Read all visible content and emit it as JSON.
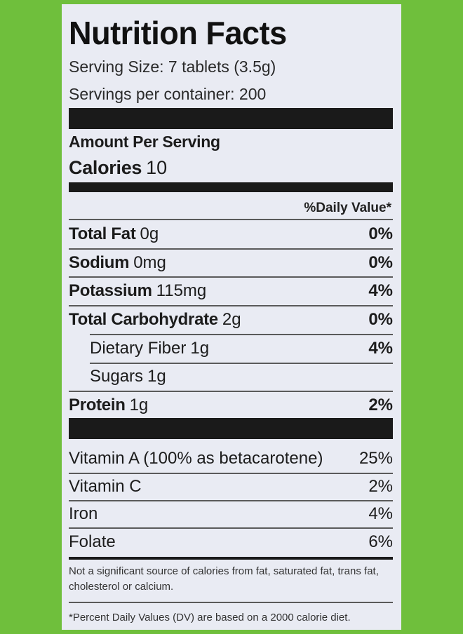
{
  "label": {
    "title": "Nutrition Facts",
    "serving_size": "Serving Size: 7 tablets (3.5g)",
    "servings_per_container": "Servings per container: 200",
    "amount_per_serving": "Amount Per Serving",
    "calories_label": "Calories",
    "calories_value": "10",
    "daily_value_header": "%Daily Value*"
  },
  "nutrients": [
    {
      "name": "Total Fat",
      "amount": "0g",
      "dv": "0%"
    },
    {
      "name": "Sodium",
      "amount": "0mg",
      "dv": "0%"
    },
    {
      "name": "Potassium",
      "amount": "115mg",
      "dv": "4%"
    },
    {
      "name": "Total Carbohydrate",
      "amount": "2g",
      "dv": "0%"
    },
    {
      "name": "Dietary Fiber",
      "amount": "1g",
      "dv": "4%"
    },
    {
      "name": "Sugars",
      "amount": "1g",
      "dv": ""
    },
    {
      "name": "Protein",
      "amount": "1g",
      "dv": "2%"
    }
  ],
  "vitamins": [
    {
      "name": "Vitamin A (100% as betacarotene)",
      "dv": "25%"
    },
    {
      "name": "Vitamin C",
      "dv": "2%"
    },
    {
      "name": "Iron",
      "dv": "4%"
    },
    {
      "name": "Folate",
      "dv": "6%"
    }
  ],
  "footnotes": {
    "not_significant": "Not a significant source of calories from fat, saturated fat, trans fat, cholesterol or calcium.",
    "daily_values": "*Percent Daily Values (DV) are based on a 2000 calorie diet."
  },
  "colors": {
    "background_green": "#6fbf3c",
    "panel": "#e9ebf3",
    "bar": "#1a1a1a"
  }
}
